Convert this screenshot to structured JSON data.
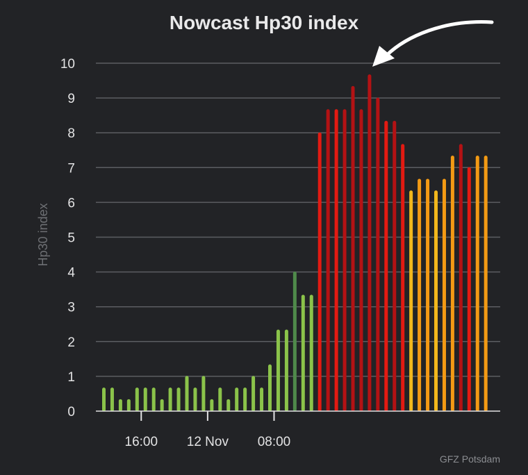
{
  "chart_data": {
    "type": "bar",
    "title": "Nowcast Hp30 index",
    "ylabel": "Hp30 index",
    "xlabel": "",
    "ylim": [
      0,
      10
    ],
    "yticks": [
      0,
      1,
      2,
      3,
      4,
      5,
      6,
      7,
      8,
      9,
      10
    ],
    "grid": true,
    "xtick_labels": [
      {
        "label": "16:00",
        "slot": 4.5
      },
      {
        "label": "12 Nov",
        "slot": 12.5
      },
      {
        "label": "08:00",
        "slot": 20.5
      }
    ],
    "bar_slot_hours": 0.5,
    "values": [
      0.667,
      0.667,
      0.333,
      0.333,
      0.667,
      0.667,
      0.667,
      0.333,
      0.667,
      0.667,
      1.0,
      0.667,
      1.0,
      0.333,
      0.667,
      0.333,
      0.667,
      0.667,
      1.0,
      0.667,
      1.333,
      2.333,
      2.333,
      4.0,
      3.333,
      3.333,
      8.0,
      8.667,
      8.667,
      8.667,
      9.333,
      8.667,
      9.667,
      9.0,
      8.333,
      8.333,
      7.667,
      6.333,
      6.667,
      6.667,
      6.333,
      6.667,
      7.333,
      7.667,
      7.0,
      7.333,
      7.333
    ],
    "colors": {
      "low_green": "#8bc34a",
      "dark_green": "#4f8a4a",
      "yellow": "#f2b81c",
      "orange": "#f39a14",
      "red": "#e31a12",
      "dark_red": "#b31214",
      "arrow": "#ffffff"
    },
    "credit": "GFZ Potsdam"
  }
}
